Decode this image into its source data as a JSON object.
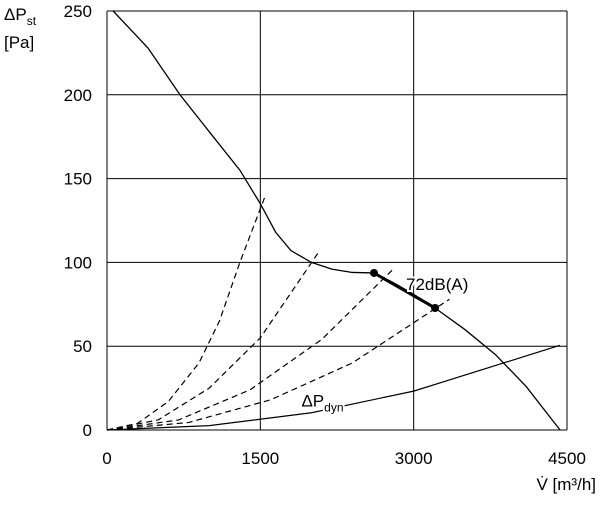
{
  "chart_data": {
    "type": "line",
    "ylabel": {
      "main": "ΔP",
      "sub": "st",
      "unit": "[Pa]"
    },
    "xlabel": "V̇ [m³/h]",
    "xlim": [
      0,
      4500
    ],
    "ylim": [
      0,
      250
    ],
    "xticks": [
      0,
      1500,
      3000,
      4500
    ],
    "yticks": [
      0,
      50,
      100,
      150,
      200,
      250
    ],
    "grid": true,
    "series": [
      {
        "color": "#000000",
        "dash": false,
        "width": 1.3,
        "x": [
          60,
          400,
          714,
          1000,
          1300,
          1500,
          1650,
          1800,
          2000,
          2200,
          2400,
          2612,
          2800,
          3000,
          3209,
          3500,
          3800,
          4100,
          4432
        ],
        "values": [
          250,
          228,
          200,
          178,
          155,
          135,
          118,
          107,
          100,
          96,
          94,
          93.7,
          88,
          81,
          72.8,
          60,
          45,
          26,
          0
        ]
      },
      {
        "color": "#000000",
        "dash": true,
        "width": 1.2,
        "x": [
          0,
          300,
          600,
          900,
          1100,
          1300,
          1550
        ],
        "values": [
          0,
          4,
          17,
          40,
          65,
          100,
          140
        ]
      },
      {
        "color": "#000000",
        "dash": true,
        "width": 1.2,
        "x": [
          0,
          500,
          1000,
          1500,
          2080
        ],
        "values": [
          0,
          6,
          25,
          55,
          107
        ]
      },
      {
        "color": "#000000",
        "dash": true,
        "width": 1.2,
        "x": [
          0,
          700,
          1400,
          2100,
          2800
        ],
        "values": [
          0,
          6,
          24,
          54,
          96
        ]
      },
      {
        "color": "#000000",
        "dash": true,
        "width": 1.2,
        "x": [
          0,
          800,
          1600,
          2400,
          3350
        ],
        "values": [
          0,
          4.5,
          18,
          40,
          78
        ]
      },
      {
        "color": "#000000",
        "dash": false,
        "width": 1.2,
        "x": [
          0,
          1000,
          2000,
          3000,
          4430
        ],
        "values": [
          0,
          2.6,
          10.3,
          23.2,
          50.5
        ],
        "label": {
          "main": "ΔP",
          "sub": "dyn"
        }
      },
      {
        "color": "#000000",
        "dash": false,
        "width": 3,
        "markers": true,
        "x": [
          2612,
          3209
        ],
        "values": [
          93.7,
          72.8
        ],
        "label": {
          "main": "72dB(A)"
        }
      }
    ]
  }
}
